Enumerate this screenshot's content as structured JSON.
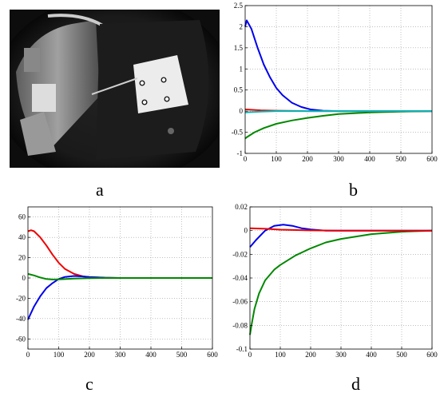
{
  "panel_labels": [
    "a",
    "b",
    "c",
    "d"
  ],
  "photo": {
    "description_icon": "fisheye-camera-image"
  },
  "chart_data": [
    {
      "panel": "b",
      "type": "line",
      "xlim": [
        0,
        600
      ],
      "ylim": [
        -1,
        2.5
      ],
      "xticks": [
        0,
        100,
        200,
        300,
        400,
        500,
        600
      ],
      "yticks": [
        -1,
        -0.5,
        0,
        0.5,
        1,
        1.5,
        2,
        2.5
      ],
      "xtick_labels": [
        "0",
        "100",
        "200",
        "300",
        "400",
        "500",
        "600"
      ],
      "ytick_labels": [
        "-1",
        "-0.5",
        "0",
        "0.5",
        "1",
        "1.5",
        "2",
        "2.5"
      ],
      "grid": true,
      "series": [
        {
          "color": "#0000ee",
          "x": [
            0,
            5,
            20,
            40,
            60,
            80,
            100,
            120,
            150,
            180,
            210,
            250,
            300,
            400,
            500,
            600
          ],
          "y": [
            2.0,
            2.15,
            1.95,
            1.5,
            1.1,
            0.8,
            0.55,
            0.38,
            0.2,
            0.1,
            0.04,
            0.01,
            0.0,
            0.0,
            0.0,
            0.0
          ]
        },
        {
          "color": "#008800",
          "x": [
            0,
            5,
            30,
            60,
            100,
            150,
            200,
            250,
            300,
            400,
            500,
            600
          ],
          "y": [
            -0.65,
            -0.62,
            -0.5,
            -0.4,
            -0.3,
            -0.22,
            -0.16,
            -0.11,
            -0.07,
            -0.03,
            -0.01,
            0.0
          ]
        },
        {
          "color": "#ee0000",
          "x": [
            0,
            50,
            100,
            200,
            300,
            600
          ],
          "y": [
            0.04,
            0.02,
            0.01,
            0.0,
            0.0,
            0.0
          ]
        },
        {
          "color": "#00bbbb",
          "x": [
            0,
            50,
            100,
            200,
            300,
            600
          ],
          "y": [
            -0.03,
            -0.01,
            0.0,
            0.0,
            0.0,
            0.0
          ]
        }
      ]
    },
    {
      "panel": "c",
      "type": "line",
      "xlim": [
        0,
        600
      ],
      "ylim": [
        -70,
        70
      ],
      "xticks": [
        0,
        100,
        200,
        300,
        400,
        500,
        600
      ],
      "yticks": [
        -60,
        -40,
        -20,
        0,
        20,
        40,
        60
      ],
      "xtick_labels": [
        "0",
        "100",
        "200",
        "300",
        "400",
        "500",
        "600"
      ],
      "ytick_labels": [
        "-60",
        "-40",
        "-20",
        "0",
        "20",
        "40",
        "60"
      ],
      "grid": true,
      "series": [
        {
          "color": "#ee0000",
          "x": [
            0,
            10,
            20,
            40,
            60,
            80,
            100,
            120,
            150,
            180,
            200,
            250,
            300,
            400,
            600
          ],
          "y": [
            46,
            47,
            46,
            40,
            32,
            23,
            15,
            9,
            4,
            1.5,
            0.8,
            0.2,
            0,
            0,
            0
          ]
        },
        {
          "color": "#0000ee",
          "x": [
            0,
            20,
            40,
            60,
            80,
            100,
            120,
            150,
            180,
            200,
            250,
            300,
            400,
            600
          ],
          "y": [
            -41,
            -28,
            -18,
            -10,
            -5,
            -1,
            1,
            2,
            1.5,
            1,
            0.3,
            0,
            0,
            0
          ]
        },
        {
          "color": "#008800",
          "x": [
            0,
            20,
            40,
            60,
            80,
            100,
            150,
            200,
            250,
            300,
            600
          ],
          "y": [
            4,
            2.5,
            0.5,
            -1,
            -1.5,
            -1.3,
            -0.6,
            -0.2,
            0,
            0,
            0
          ]
        }
      ]
    },
    {
      "panel": "d",
      "type": "line",
      "xlim": [
        0,
        600
      ],
      "ylim": [
        -0.1,
        0.02
      ],
      "xticks": [
        0,
        100,
        200,
        300,
        400,
        500,
        600
      ],
      "yticks": [
        -0.1,
        -0.08,
        -0.06,
        -0.04,
        -0.02,
        0,
        0.02
      ],
      "xtick_labels": [
        "0",
        "100",
        "200",
        "300",
        "400",
        "500",
        "600"
      ],
      "ytick_labels": [
        "-0.1",
        "-0.08",
        "-0.06",
        "-0.04",
        "-0.02",
        "0",
        "0.02"
      ],
      "grid": true,
      "series": [
        {
          "color": "#008800",
          "x": [
            0,
            5,
            15,
            30,
            50,
            80,
            100,
            150,
            200,
            250,
            300,
            400,
            500,
            600
          ],
          "y": [
            -0.088,
            -0.08,
            -0.066,
            -0.053,
            -0.042,
            -0.033,
            -0.029,
            -0.021,
            -0.015,
            -0.01,
            -0.007,
            -0.003,
            -0.001,
            0.0
          ]
        },
        {
          "color": "#0000ee",
          "x": [
            0,
            20,
            50,
            80,
            110,
            140,
            170,
            200,
            250,
            300,
            600
          ],
          "y": [
            -0.014,
            -0.008,
            0.0,
            0.004,
            0.005,
            0.004,
            0.002,
            0.001,
            0.0,
            0.0,
            0.0
          ]
        },
        {
          "color": "#ee0000",
          "x": [
            0,
            50,
            100,
            200,
            300,
            600
          ],
          "y": [
            0.002,
            0.0015,
            0.0008,
            0.0002,
            0.0,
            0.0
          ]
        }
      ]
    }
  ]
}
